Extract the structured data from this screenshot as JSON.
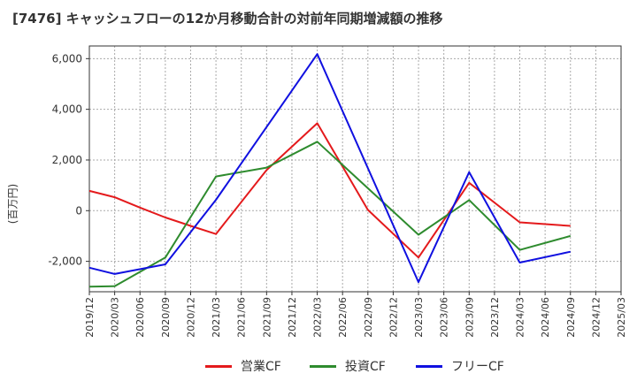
{
  "chart_data": {
    "type": "line",
    "title": "[7476]  キャッシュフローの12か月移動合計の対前年同期増減額の推移",
    "ylabel": "(百万円)",
    "xlabel": "",
    "ylim": [
      -3200,
      6500
    ],
    "yticks": [
      "6,000",
      "4,000",
      "2,000",
      "0",
      "-2,000"
    ],
    "ytick_values": [
      6000,
      4000,
      2000,
      0,
      -2000
    ],
    "categories": [
      "2019/12",
      "2020/03",
      "2020/06",
      "2020/09",
      "2020/12",
      "2021/03",
      "2021/06",
      "2021/09",
      "2021/12",
      "2022/03",
      "2022/06",
      "2022/09",
      "2022/12",
      "2023/03",
      "2023/06",
      "2023/09",
      "2023/12",
      "2024/03",
      "2024/06",
      "2024/09",
      "2024/12",
      "2025/03"
    ],
    "grid": true,
    "legend_position": "bottom",
    "series": [
      {
        "name": "営業CF",
        "color": "#e41a1c",
        "values": [
          780,
          530,
          120,
          -270,
          -600,
          -920,
          null,
          1600,
          null,
          3450,
          null,
          30,
          null,
          -1850,
          null,
          1100,
          null,
          -460,
          null,
          -600,
          null,
          null
        ]
      },
      {
        "name": "投資CF",
        "color": "#2e8b2e",
        "values": [
          -3000,
          -2980,
          null,
          -1850,
          null,
          1350,
          null,
          1700,
          null,
          2720,
          null,
          null,
          null,
          -950,
          null,
          420,
          null,
          -1550,
          null,
          -1000,
          null,
          null
        ]
      },
      {
        "name": "フリーCF",
        "color": "#1010e0",
        "values": [
          -2250,
          -2500,
          null,
          -2120,
          null,
          430,
          null,
          null,
          null,
          6180,
          null,
          null,
          null,
          -2820,
          null,
          1520,
          null,
          -2050,
          null,
          -1620,
          null,
          null
        ]
      }
    ]
  }
}
